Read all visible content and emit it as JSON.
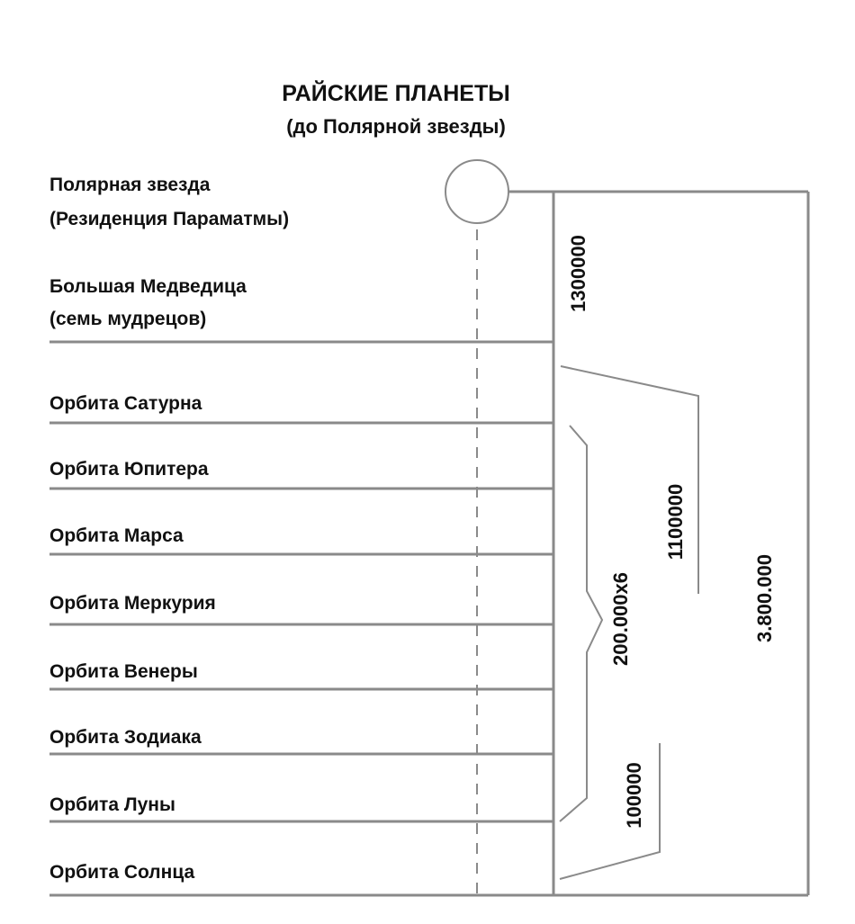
{
  "title": "РАЙСКИЕ ПЛАНЕТЫ",
  "subtitle": "(до Полярной звезды)",
  "labels": [
    {
      "line1": "Полярная звезда",
      "line2": "(Резиденция Параматмы)"
    },
    {
      "line1": "Большая Медведица",
      "line2": "(семь мудрецов)"
    },
    {
      "line1": "Орбита Сатурна"
    },
    {
      "line1": "Орбита Юпитера"
    },
    {
      "line1": "Орбита Марса"
    },
    {
      "line1": "Орбита Меркурия"
    },
    {
      "line1": "Орбита Венеры"
    },
    {
      "line1": "Орбита Зодиака"
    },
    {
      "line1": "Орбита Луны"
    },
    {
      "line1": "Орбита Солнца"
    }
  ],
  "distances": {
    "polar_to_ursa": "1300000",
    "saturn_to_sun": "1100000",
    "between_orbits": "200.000x6",
    "moon_to_sun": "100000",
    "total": "3.800.000"
  }
}
